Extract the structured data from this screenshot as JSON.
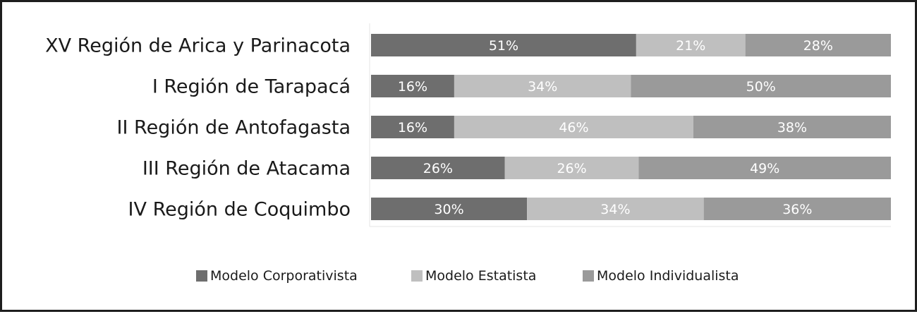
{
  "chart_data": {
    "type": "bar",
    "orientation": "horizontal",
    "stacked": "percent",
    "categories": [
      "XV Región de Arica y Parinacota",
      "I Región de Tarapacá",
      "II Región de Antofagasta",
      "III Región de Atacama",
      "IV Región de Coquimbo"
    ],
    "series": [
      {
        "name": "Modelo Corporativista",
        "color": "#6e6e6e",
        "values": [
          51,
          16,
          16,
          26,
          30
        ],
        "labels": [
          "51%",
          "16%",
          "16%",
          "26%",
          "30%"
        ]
      },
      {
        "name": "Modelo Estatista",
        "color": "#bfbfbf",
        "values": [
          21,
          34,
          46,
          26,
          34
        ],
        "labels": [
          "21%",
          "34%",
          "46%",
          "26%",
          "34%"
        ]
      },
      {
        "name": "Modelo Individualista",
        "color": "#9a9a9a",
        "values": [
          28,
          50,
          38,
          49,
          36
        ],
        "labels": [
          "28%",
          "50%",
          "38%",
          "49%",
          "36%"
        ]
      }
    ],
    "xlim": [
      0,
      100
    ],
    "grid": false,
    "legend_position": "bottom"
  }
}
